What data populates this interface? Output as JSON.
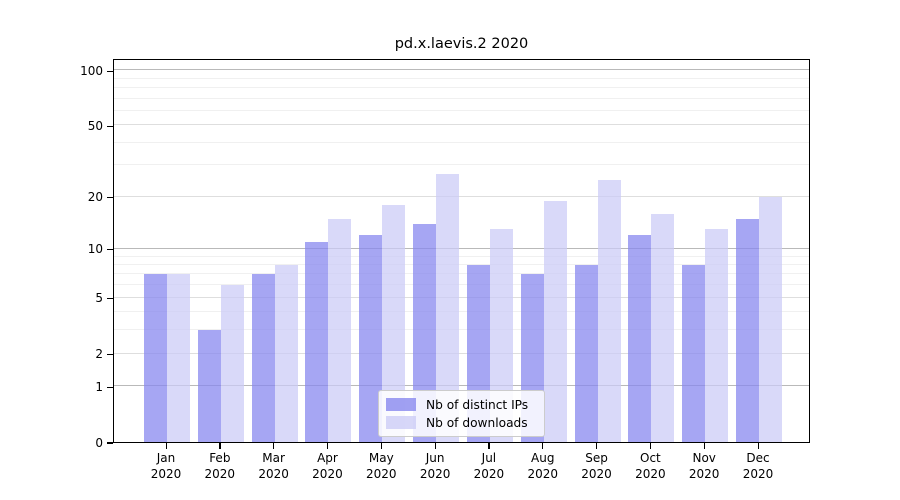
{
  "chart_data": {
    "type": "bar",
    "title": "pd.x.laevis.2 2020",
    "categories": [
      "Jan",
      "Feb",
      "Mar",
      "Apr",
      "May",
      "Jun",
      "Jul",
      "Aug",
      "Sep",
      "Oct",
      "Nov",
      "Dec"
    ],
    "category_year": "2020",
    "series": [
      {
        "name": "Nb of distinct IPs",
        "color_hex": "#8888EF",
        "alpha": 0.75,
        "values": [
          7,
          3,
          7,
          11,
          12,
          14,
          8,
          7,
          8,
          12,
          8,
          15
        ]
      },
      {
        "name": "Nb of downloads",
        "color_hex": "#CBCBF6",
        "alpha": 0.72,
        "values": [
          7,
          6,
          8,
          15,
          18,
          27,
          13,
          19,
          25,
          16,
          13,
          20
        ]
      }
    ],
    "yscale": "log10(1+x)",
    "yticks": [
      0,
      1,
      2,
      5,
      10,
      20,
      50,
      100
    ],
    "minor_yticks": [
      3,
      4,
      6,
      7,
      8,
      9,
      30,
      40,
      60,
      70,
      80,
      90
    ],
    "emphasized_gridlines": [
      1,
      10,
      100
    ],
    "ylim": [
      0,
      116
    ],
    "grid": "horizontal",
    "legend_position": "inside-bottom-center"
  }
}
